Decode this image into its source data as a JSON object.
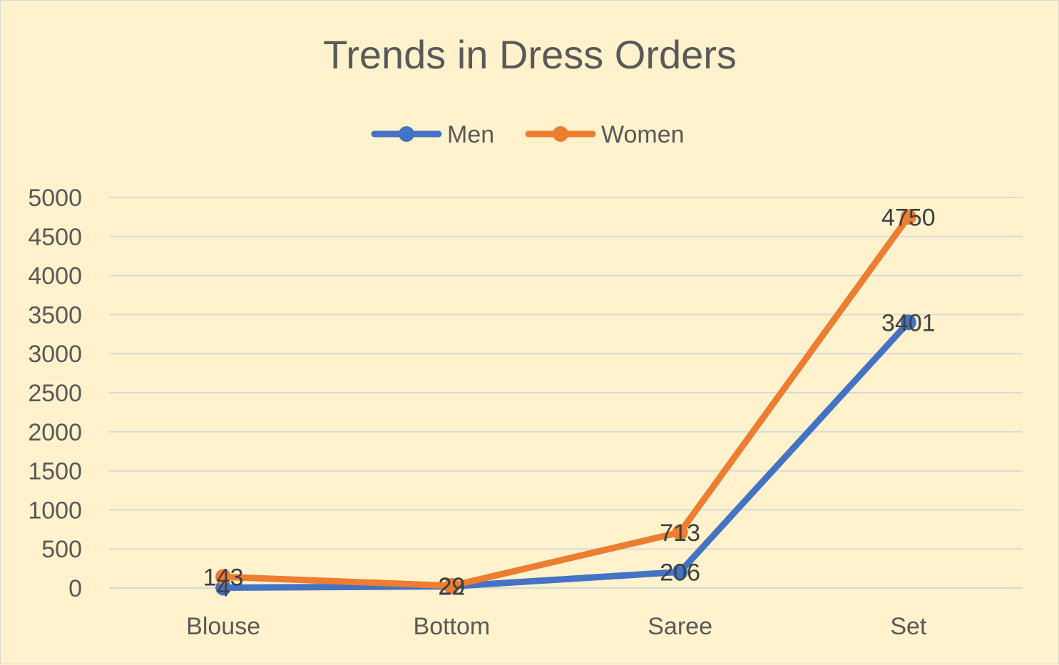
{
  "chart_data": {
    "type": "line",
    "title": "Trends in Dress Orders",
    "categories": [
      "Blouse",
      "Bottom",
      "Saree",
      "Set"
    ],
    "series": [
      {
        "name": "Men",
        "values": [
          4,
          22,
          206,
          3401
        ],
        "color": "#4472c4"
      },
      {
        "name": "Women",
        "values": [
          143,
          29,
          713,
          4750
        ],
        "color": "#ed7d31"
      }
    ],
    "ylim": [
      0,
      5000
    ],
    "yticks": [
      0,
      500,
      1000,
      1500,
      2000,
      2500,
      3000,
      3500,
      4000,
      4500,
      5000
    ],
    "grid": true,
    "legend_position": "top",
    "data_labels": true
  },
  "colors": {
    "background": "#fff2cc",
    "gridline": "#d9d9d9",
    "text": "#595959"
  }
}
